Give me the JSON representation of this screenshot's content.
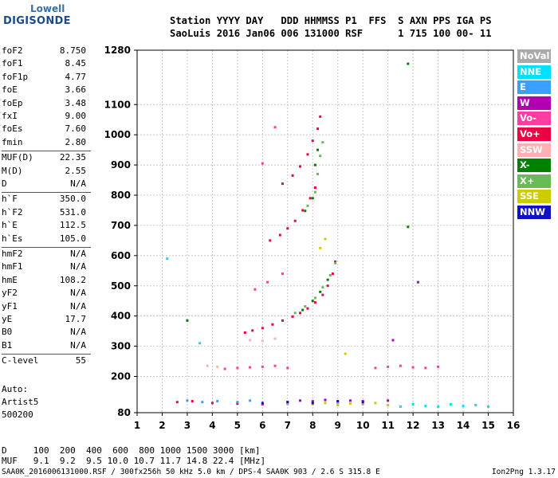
{
  "logo": {
    "top": "Lowell",
    "bottom": "DIGISONDE"
  },
  "header": {
    "line1": "Station YYYY DAY   DDD HHMMSS P1  FFS  S AXN PPS IGA PS",
    "line2": "SaoLuis 2016 Jan06 006 131000 RSF      1 715 100 00- 11"
  },
  "parameters": [
    {
      "label": "foF2",
      "value": "8.750"
    },
    {
      "label": "foF1",
      "value": "8.45"
    },
    {
      "label": "foF1p",
      "value": "4.77"
    },
    {
      "label": "foE",
      "value": "3.66"
    },
    {
      "label": "foEp",
      "value": "3.48"
    },
    {
      "label": "fxI",
      "value": "9.00"
    },
    {
      "label": "foEs",
      "value": "7.60"
    },
    {
      "label": "fmin",
      "value": "2.80"
    },
    {
      "label": "MUF(D)",
      "value": "22.35"
    },
    {
      "label": "M(D)",
      "value": "2.55"
    },
    {
      "label": "D",
      "value": "N/A"
    },
    {
      "label": "h`F",
      "value": "350.0"
    },
    {
      "label": "h`F2",
      "value": "531.0"
    },
    {
      "label": "h`E",
      "value": "112.5"
    },
    {
      "label": "h`Es",
      "value": "105.0"
    },
    {
      "label": "hmF2",
      "value": "N/A"
    },
    {
      "label": "hmF1",
      "value": "N/A"
    },
    {
      "label": "hmE",
      "value": "108.2"
    },
    {
      "label": "yF2",
      "value": "N/A"
    },
    {
      "label": "yF1",
      "value": "N/A"
    },
    {
      "label": "yE",
      "value": "17.7"
    },
    {
      "label": "B0",
      "value": "N/A"
    },
    {
      "label": "B1",
      "value": "N/A"
    },
    {
      "label": "C-level",
      "value": "55"
    }
  ],
  "auto": {
    "line1": "Auto:",
    "line2": "Artist5",
    "line3": "500200"
  },
  "footer": {
    "d_row": "D     100  200  400  600  800 1000 1500 3000 [km]",
    "muf_row": "MUF   9.1  9.2  9.5 10.0 10.7 11.7 14.8 22.4 [MHz]",
    "file_line": "SAA0K_2016006131000.RSF / 300fx256h 50 kHz 5.0 km / DPS-4 SAA0K 903 / 2.6 S 315.8 E",
    "version": "Ion2Png 1.3.17"
  },
  "legend": [
    {
      "label": "NoVal",
      "color": "#a9a9a9"
    },
    {
      "label": "NNE",
      "color": "#00e0ff"
    },
    {
      "label": "E",
      "color": "#3aa0ff"
    },
    {
      "label": "W",
      "color": "#b000b0"
    },
    {
      "label": "Vo-",
      "color": "#ff3ca0"
    },
    {
      "label": "Vo+",
      "color": "#ee0044"
    },
    {
      "label": "SSW",
      "color": "#ffb0b0"
    },
    {
      "label": "X-",
      "color": "#008000"
    },
    {
      "label": "X+",
      "color": "#66bb55"
    },
    {
      "label": "SSE",
      "color": "#cccc00"
    },
    {
      "label": "NNW",
      "color": "#1010c8"
    }
  ],
  "chart_data": {
    "type": "scatter",
    "xlim": [
      1,
      16
    ],
    "ylim": [
      80,
      1280
    ],
    "x_ticks": [
      1,
      2,
      3,
      4,
      5,
      6,
      7,
      8,
      9,
      10,
      11,
      12,
      13,
      14,
      15,
      16
    ],
    "y_ticks": [
      80,
      200,
      300,
      400,
      500,
      600,
      700,
      800,
      900,
      1000,
      1100,
      1280
    ],
    "grid": true,
    "legend_position": "right",
    "series": [
      {
        "name": "Vo+",
        "color": "#ee0044",
        "points": [
          [
            5.3,
            345
          ],
          [
            5.6,
            352
          ],
          [
            6.0,
            360
          ],
          [
            6.4,
            372
          ],
          [
            6.8,
            385
          ],
          [
            7.2,
            398
          ],
          [
            7.5,
            410
          ],
          [
            7.8,
            425
          ],
          [
            8.1,
            445
          ],
          [
            8.4,
            470
          ],
          [
            8.6,
            500
          ],
          [
            8.8,
            540
          ],
          [
            8.9,
            580
          ],
          [
            6.3,
            650
          ],
          [
            6.7,
            668
          ],
          [
            7.0,
            690
          ],
          [
            7.3,
            715
          ],
          [
            7.6,
            750
          ],
          [
            7.9,
            790
          ],
          [
            8.1,
            825
          ],
          [
            6.8,
            838
          ],
          [
            7.2,
            865
          ],
          [
            7.5,
            895
          ],
          [
            7.8,
            935
          ],
          [
            8.0,
            980
          ],
          [
            8.2,
            1020
          ],
          [
            8.3,
            1060
          ],
          [
            2.6,
            115
          ],
          [
            3.2,
            118
          ],
          [
            4.0,
            112
          ],
          [
            5.0,
            110
          ],
          [
            6.0,
            108
          ]
        ]
      },
      {
        "name": "X+",
        "color": "#66bb55",
        "points": [
          [
            7.3,
            410
          ],
          [
            7.7,
            432
          ],
          [
            8.1,
            460
          ],
          [
            8.4,
            495
          ],
          [
            8.7,
            535
          ],
          [
            8.9,
            575
          ],
          [
            7.8,
            765
          ],
          [
            8.1,
            810
          ],
          [
            8.2,
            870
          ],
          [
            8.3,
            930
          ],
          [
            8.4,
            975
          ]
        ]
      },
      {
        "name": "X-",
        "color": "#008000",
        "points": [
          [
            7.6,
            420
          ],
          [
            8.0,
            450
          ],
          [
            8.3,
            480
          ],
          [
            8.6,
            520
          ],
          [
            7.7,
            748
          ],
          [
            8.0,
            790
          ],
          [
            8.1,
            900
          ],
          [
            8.2,
            950
          ],
          [
            3.0,
            385
          ],
          [
            11.8,
            1235
          ],
          [
            11.8,
            695
          ]
        ]
      },
      {
        "name": "W",
        "color": "#b000b0",
        "points": [
          [
            7.0,
            115
          ],
          [
            7.5,
            120
          ],
          [
            8.0,
            118
          ],
          [
            8.5,
            122
          ],
          [
            9.0,
            115
          ],
          [
            9.5,
            120
          ],
          [
            10.0,
            118
          ],
          [
            11.0,
            120
          ],
          [
            12.2,
            512
          ],
          [
            11.2,
            320
          ]
        ]
      },
      {
        "name": "NNE",
        "color": "#00e0ff",
        "points": [
          [
            11.5,
            100
          ],
          [
            12.0,
            108
          ],
          [
            12.5,
            102
          ],
          [
            13.0,
            100
          ],
          [
            13.5,
            108
          ],
          [
            14.0,
            102
          ],
          [
            14.5,
            105
          ],
          [
            15.0,
            100
          ],
          [
            3.5,
            310
          ],
          [
            2.2,
            590
          ]
        ]
      },
      {
        "name": "SSE",
        "color": "#cccc00",
        "points": [
          [
            8.0,
            108
          ],
          [
            8.5,
            112
          ],
          [
            9.0,
            105
          ],
          [
            9.5,
            110
          ],
          [
            10.0,
            108
          ],
          [
            10.5,
            112
          ],
          [
            11.0,
            105
          ],
          [
            8.5,
            655
          ],
          [
            8.3,
            625
          ],
          [
            9.3,
            275
          ]
        ]
      },
      {
        "name": "Vo-",
        "color": "#ff3ca0",
        "points": [
          [
            4.5,
            225
          ],
          [
            5.0,
            228
          ],
          [
            5.5,
            230
          ],
          [
            6.0,
            232
          ],
          [
            6.5,
            235
          ],
          [
            7.0,
            228
          ],
          [
            10.5,
            228
          ],
          [
            11.0,
            232
          ],
          [
            11.5,
            235
          ],
          [
            12.0,
            230
          ],
          [
            12.5,
            228
          ],
          [
            13.0,
            232
          ],
          [
            5.7,
            488
          ],
          [
            6.2,
            512
          ],
          [
            6.8,
            540
          ],
          [
            6.0,
            905
          ],
          [
            6.5,
            1025
          ]
        ]
      },
      {
        "name": "NoVal",
        "color": "#a9a9a9",
        "points": [
          [
            7.0,
            108
          ],
          [
            8.0,
            110
          ],
          [
            9.0,
            112
          ],
          [
            10.0,
            108
          ]
        ]
      },
      {
        "name": "E",
        "color": "#3aa0ff",
        "points": [
          [
            3.0,
            120
          ],
          [
            3.6,
            115
          ],
          [
            4.2,
            118
          ],
          [
            5.0,
            115
          ],
          [
            5.5,
            120
          ]
        ]
      },
      {
        "name": "NNW",
        "color": "#1010c8",
        "points": [
          [
            6.0,
            112
          ],
          [
            7.0,
            115
          ],
          [
            8.0,
            112
          ],
          [
            9.0,
            118
          ],
          [
            10.0,
            115
          ]
        ]
      },
      {
        "name": "SSW",
        "color": "#ffb0b0",
        "points": [
          [
            5.5,
            320
          ],
          [
            6.0,
            318
          ],
          [
            6.5,
            325
          ],
          [
            3.8,
            235
          ],
          [
            4.2,
            232
          ]
        ]
      }
    ]
  }
}
